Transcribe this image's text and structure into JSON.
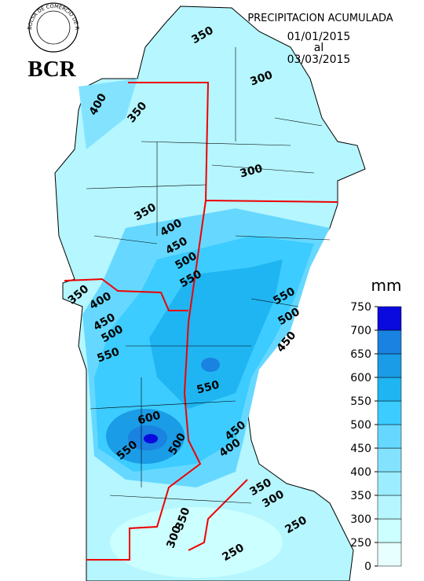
{
  "header": {
    "logo_text": "BOLSA DE COMERCIO DE ROSARIO",
    "brand": "BCR",
    "title": "PRECIPITACION ACUMULADA",
    "date_from": "01/01/2015",
    "date_sep": "al",
    "date_to": "03/03/2015"
  },
  "legend": {
    "unit": "mm",
    "levels": [
      0,
      250,
      300,
      350,
      400,
      450,
      500,
      550,
      600,
      650,
      700,
      750
    ],
    "colors": [
      "#e8ffff",
      "#ccffff",
      "#b5f6ff",
      "#9cedff",
      "#83e3ff",
      "#66d8ff",
      "#3cccff",
      "#1fb5f2",
      "#1b9ce6",
      "#1a82e0",
      "#0a0ade"
    ]
  },
  "contour_labels": [
    350,
    300,
    400,
    350,
    300,
    350,
    400,
    450,
    500,
    550,
    350,
    400,
    450,
    500,
    550,
    550,
    500,
    450,
    550,
    600,
    450,
    400,
    500,
    550,
    350,
    300,
    350,
    300,
    250,
    250
  ]
}
